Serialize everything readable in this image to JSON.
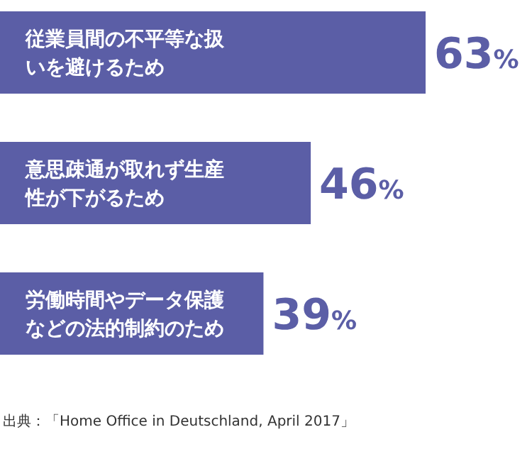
{
  "chart_data": {
    "type": "bar",
    "orientation": "horizontal",
    "categories": [
      "従業員間の不平等な扱いを避けるため",
      "意思疎通が取れず生産性が下がるため",
      "労働時間やデータ保護などの法的制約のため"
    ],
    "values": [
      63,
      46,
      39
    ],
    "value_labels": [
      "63%",
      "46%",
      "39%"
    ],
    "color": "#5b5ea6",
    "annotations": [
      "出典：「Home Office in Deutschland, April 2017」"
    ]
  }
}
